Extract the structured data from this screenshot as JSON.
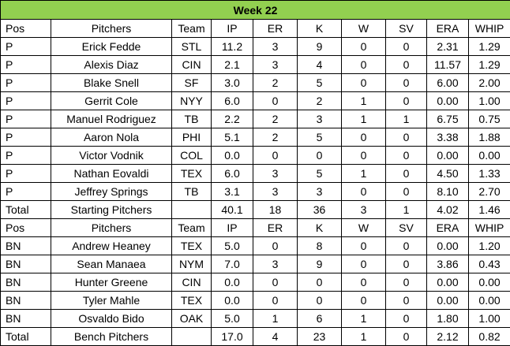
{
  "title": "Week 22",
  "headers": [
    "Pos",
    "Pitchers",
    "Team",
    "IP",
    "ER",
    "K",
    "W",
    "SV",
    "ERA",
    "WHIP"
  ],
  "starting": [
    [
      "P",
      "Erick Fedde",
      "STL",
      "11.2",
      "3",
      "9",
      "0",
      "0",
      "2.31",
      "1.29"
    ],
    [
      "P",
      "Alexis Diaz",
      "CIN",
      "2.1",
      "3",
      "4",
      "0",
      "0",
      "11.57",
      "1.29"
    ],
    [
      "P",
      "Blake Snell",
      "SF",
      "3.0",
      "2",
      "5",
      "0",
      "0",
      "6.00",
      "2.00"
    ],
    [
      "P",
      "Gerrit Cole",
      "NYY",
      "6.0",
      "0",
      "2",
      "1",
      "0",
      "0.00",
      "1.00"
    ],
    [
      "P",
      "Manuel Rodriguez",
      "TB",
      "2.2",
      "2",
      "3",
      "1",
      "1",
      "6.75",
      "0.75"
    ],
    [
      "P",
      "Aaron Nola",
      "PHI",
      "5.1",
      "2",
      "5",
      "0",
      "0",
      "3.38",
      "1.88"
    ],
    [
      "P",
      "Victor Vodnik",
      "COL",
      "0.0",
      "0",
      "0",
      "0",
      "0",
      "0.00",
      "0.00"
    ],
    [
      "P",
      "Nathan Eovaldi",
      "TEX",
      "6.0",
      "3",
      "5",
      "1",
      "0",
      "4.50",
      "1.33"
    ],
    [
      "P",
      "Jeffrey Springs",
      "TB",
      "3.1",
      "3",
      "3",
      "0",
      "0",
      "8.10",
      "2.70"
    ]
  ],
  "starting_total": [
    "Total",
    "Starting Pitchers",
    "",
    "40.1",
    "18",
    "36",
    "3",
    "1",
    "4.02",
    "1.46"
  ],
  "bench": [
    [
      "BN",
      "Andrew Heaney",
      "TEX",
      "5.0",
      "0",
      "8",
      "0",
      "0",
      "0.00",
      "1.20"
    ],
    [
      "BN",
      "Sean Manaea",
      "NYM",
      "7.0",
      "3",
      "9",
      "0",
      "0",
      "3.86",
      "0.43"
    ],
    [
      "BN",
      "Hunter Greene",
      "CIN",
      "0.0",
      "0",
      "0",
      "0",
      "0",
      "0.00",
      "0.00"
    ],
    [
      "BN",
      "Tyler Mahle",
      "TEX",
      "0.0",
      "0",
      "0",
      "0",
      "0",
      "0.00",
      "0.00"
    ],
    [
      "BN",
      "Osvaldo Bido",
      "OAK",
      "5.0",
      "1",
      "6",
      "1",
      "0",
      "1.80",
      "1.00"
    ]
  ],
  "bench_total": [
    "Total",
    "Bench Pitchers",
    "",
    "17.0",
    "4",
    "23",
    "1",
    "0",
    "2.12",
    "0.82"
  ],
  "colors": {
    "title_bg": "#92d050"
  }
}
